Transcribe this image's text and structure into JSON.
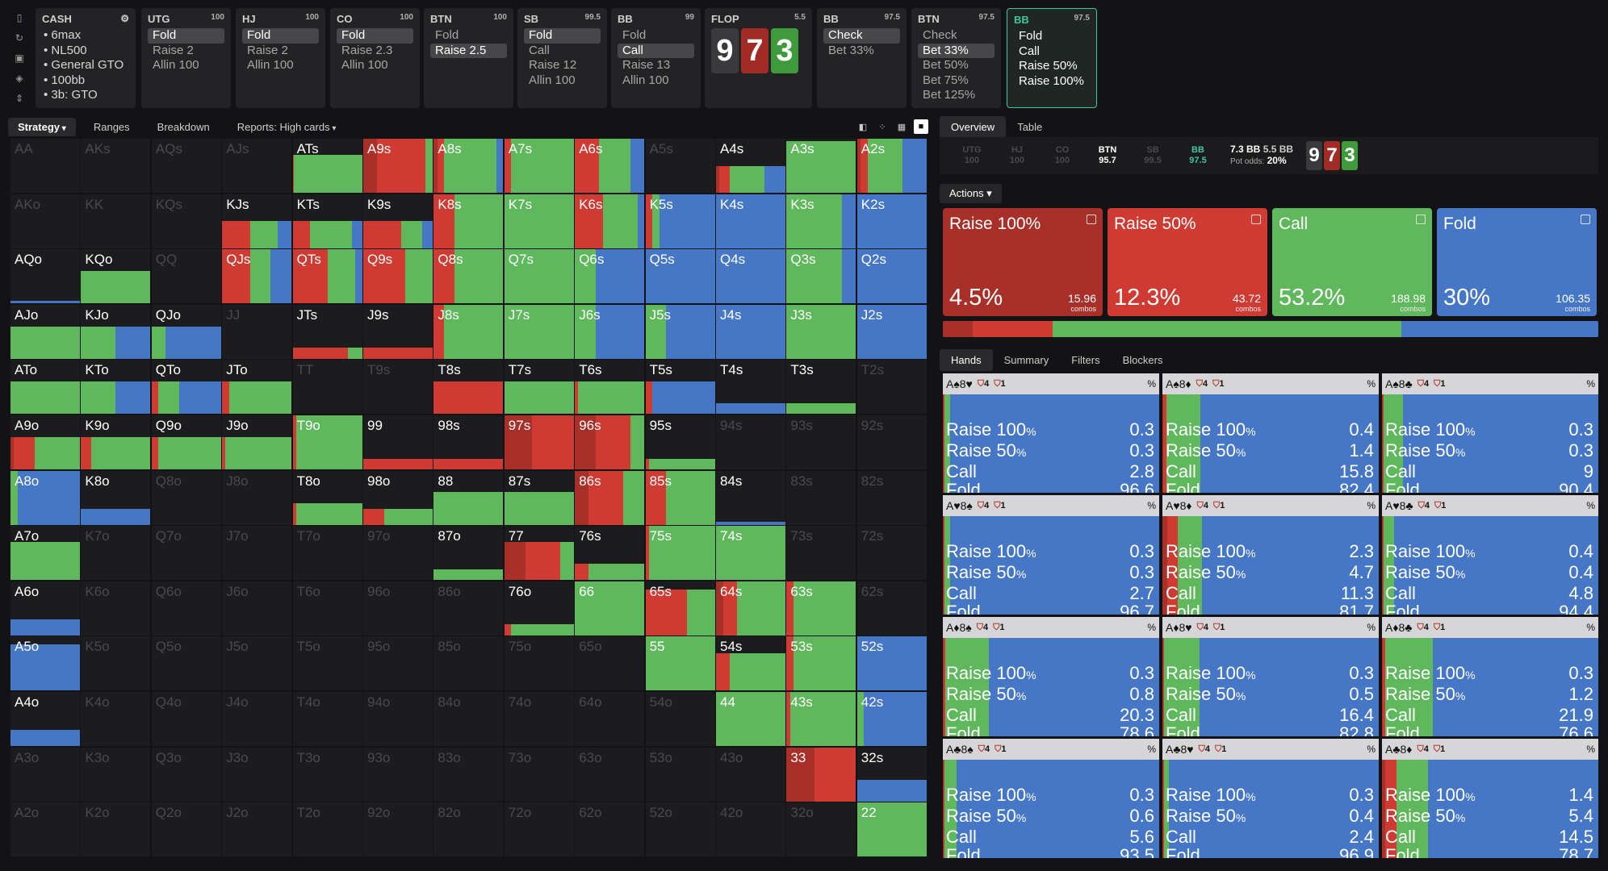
{
  "colors": {
    "raise_big": "#a83029",
    "raise": "#cf3b32",
    "call": "#5fb85c",
    "fold": "#4577c6",
    "check": "#5fb85c",
    "accent": "#3fc59a"
  },
  "sidetools": [
    "bookmark-icon",
    "refresh-icon",
    "save-icon",
    "controller-icon",
    "height-icon"
  ],
  "cash": {
    "title": "CASH",
    "items": [
      "6max",
      "NL500",
      "General GTO",
      "100bb",
      "3b: GTO"
    ]
  },
  "action_boxes": [
    {
      "pos": "UTG",
      "stack": "100",
      "options": [
        "Fold",
        "Raise 2",
        "Allin 100"
      ],
      "selected": 0
    },
    {
      "pos": "HJ",
      "stack": "100",
      "options": [
        "Fold",
        "Raise 2",
        "Allin 100"
      ],
      "selected": 0
    },
    {
      "pos": "CO",
      "stack": "100",
      "options": [
        "Fold",
        "Raise 2.3",
        "Allin 100"
      ],
      "selected": 0
    },
    {
      "pos": "BTN",
      "stack": "100",
      "options": [
        "Fold",
        "Raise 2.5"
      ],
      "selected": 1
    },
    {
      "pos": "SB",
      "stack": "99.5",
      "options": [
        "Fold",
        "Call",
        "Raise 12",
        "Allin 100"
      ],
      "selected": 0
    },
    {
      "pos": "BB",
      "stack": "99",
      "options": [
        "Fold",
        "Call",
        "Raise 13",
        "Allin 100"
      ],
      "selected": 1
    },
    {
      "pos": "BB",
      "stack": "97.5",
      "options": [
        "Check",
        "Bet 33%"
      ],
      "selected": 0
    },
    {
      "pos": "BTN",
      "stack": "97.5",
      "options": [
        "Check",
        "Bet 33%",
        "Bet 50%",
        "Bet 75%",
        "Bet 125%"
      ],
      "selected": 1
    },
    {
      "pos": "BB",
      "stack": "97.5",
      "options": [
        "Fold",
        "Call",
        "Raise 50%",
        "Raise 100%"
      ],
      "selected": -1,
      "active": true
    }
  ],
  "flop": {
    "title": "FLOP",
    "pot": "5.5",
    "cards": [
      {
        "rank": "9",
        "color": "#3a3a3c"
      },
      {
        "rank": "7",
        "color": "#a32b26"
      },
      {
        "rank": "3",
        "color": "#3f9a3c"
      }
    ]
  },
  "left_tabs": [
    "Strategy",
    "Ranges",
    "Breakdown",
    "Reports: High cards"
  ],
  "view_icons": [
    "compare-icon",
    "grid-small-icon",
    "grid-medium-icon",
    "grid-large-icon"
  ],
  "grid_labels": [
    [
      "AA",
      "AKs",
      "AQs",
      "AJs",
      "ATs",
      "A9s",
      "A8s",
      "A7s",
      "A6s",
      "A5s",
      "A4s",
      "A3s",
      "A2s"
    ],
    [
      "AKo",
      "KK",
      "KQs",
      "KJs",
      "KTs",
      "K9s",
      "K8s",
      "K7s",
      "K6s",
      "K5s",
      "K4s",
      "K3s",
      "K2s"
    ],
    [
      "AQo",
      "KQo",
      "QQ",
      "QJs",
      "QTs",
      "Q9s",
      "Q8s",
      "Q7s",
      "Q6s",
      "Q5s",
      "Q4s",
      "Q3s",
      "Q2s"
    ],
    [
      "AJo",
      "KJo",
      "QJo",
      "JJ",
      "JTs",
      "J9s",
      "J8s",
      "J7s",
      "J6s",
      "J5s",
      "J4s",
      "J3s",
      "J2s"
    ],
    [
      "ATo",
      "KTo",
      "QTo",
      "JTo",
      "TT",
      "T9s",
      "T8s",
      "T7s",
      "T6s",
      "T5s",
      "T4s",
      "T3s",
      "T2s"
    ],
    [
      "A9o",
      "K9o",
      "Q9o",
      "J9o",
      "T9o",
      "99",
      "98s",
      "97s",
      "96s",
      "95s",
      "94s",
      "93s",
      "92s"
    ],
    [
      "A8o",
      "K8o",
      "Q8o",
      "J8o",
      "T8o",
      "98o",
      "88",
      "87s",
      "86s",
      "85s",
      "84s",
      "83s",
      "82s"
    ],
    [
      "A7o",
      "K7o",
      "Q7o",
      "J7o",
      "T7o",
      "97o",
      "87o",
      "77",
      "76s",
      "75s",
      "74s",
      "73s",
      "72s"
    ],
    [
      "A6o",
      "K6o",
      "Q6o",
      "J6o",
      "T6o",
      "96o",
      "86o",
      "76o",
      "66",
      "65s",
      "64s",
      "63s",
      "62s"
    ],
    [
      "A5o",
      "K5o",
      "Q5o",
      "J5o",
      "T5o",
      "95o",
      "85o",
      "75o",
      "65o",
      "55",
      "54s",
      "53s",
      "52s"
    ],
    [
      "A4o",
      "K4o",
      "Q4o",
      "J4o",
      "T4o",
      "94o",
      "84o",
      "74o",
      "64o",
      "54o",
      "44",
      "43s",
      "42s"
    ],
    [
      "A3o",
      "K3o",
      "Q3o",
      "J3o",
      "T3o",
      "93o",
      "83o",
      "73o",
      "63o",
      "53o",
      "43o",
      "33",
      "32s"
    ],
    [
      "A2o",
      "K2o",
      "Q2o",
      "J2o",
      "T2o",
      "92o",
      "82o",
      "72o",
      "62o",
      "52o",
      "42o",
      "32o",
      "22"
    ]
  ],
  "grid_strategy": {
    "AA": null,
    "AKs": null,
    "AQs": null,
    "AJs": null,
    "ATs": [
      0.7,
      0,
      0.02,
      0.98,
      0
    ],
    "A9s": [
      1,
      0.2,
      0.7,
      0.1,
      0
    ],
    "A8s": [
      1,
      0.05,
      0.1,
      0.75,
      0.1
    ],
    "A7s": [
      1,
      0,
      0.1,
      0.9,
      0
    ],
    "A6s": [
      1,
      0,
      0.35,
      0.45,
      0.2
    ],
    "A5s": null,
    "A4s": [
      0.5,
      0.05,
      0.15,
      0.5,
      0.3
    ],
    "A3s": [
      0.95,
      0,
      0,
      1,
      0
    ],
    "A2s": [
      1,
      0.05,
      0.1,
      0.5,
      0.35
    ],
    "AKo": null,
    "KK": null,
    "KQs": null,
    "KJs": [
      0.5,
      0,
      0.4,
      0.4,
      0.2
    ],
    "KTs": [
      0.5,
      0,
      0.25,
      0.6,
      0.15
    ],
    "K9s": [
      0.5,
      0,
      0.55,
      0.3,
      0.15
    ],
    "K8s": [
      1,
      0,
      0.3,
      0.7,
      0
    ],
    "K7s": [
      1,
      0,
      0,
      1,
      0
    ],
    "K6s": [
      1,
      0,
      0.4,
      0.5,
      0.1
    ],
    "K5s": [
      1,
      0,
      0.1,
      0.1,
      0.8
    ],
    "K4s": [
      1,
      0,
      0,
      0,
      1
    ],
    "K3s": [
      1,
      0,
      0,
      0.8,
      0.2
    ],
    "K2s": [
      1,
      0,
      0,
      0,
      1
    ],
    "AQo": [
      0.05,
      0,
      0,
      0,
      1
    ],
    "KQo": [
      0.6,
      0,
      0,
      1,
      0
    ],
    "QQ": null,
    "QJs": [
      1,
      0,
      0.4,
      0.3,
      0.3
    ],
    "QTs": [
      1,
      0,
      0.5,
      0.4,
      0.1
    ],
    "Q9s": [
      1,
      0,
      0.6,
      0.4,
      0
    ],
    "Q8s": [
      1,
      0,
      0.3,
      0.7,
      0
    ],
    "Q7s": [
      1,
      0,
      0,
      1,
      0
    ],
    "Q6s": [
      1,
      0,
      0,
      0.3,
      0.7
    ],
    "Q5s": [
      1,
      0,
      0,
      0,
      1
    ],
    "Q4s": [
      1,
      0,
      0,
      0,
      1
    ],
    "Q3s": [
      1,
      0,
      0,
      0.8,
      0.2
    ],
    "Q2s": [
      1,
      0,
      0,
      0,
      1
    ],
    "AJo": [
      0.6,
      0,
      0,
      1,
      0
    ],
    "KJo": [
      0.6,
      0,
      0,
      0.5,
      0.5
    ],
    "QJo": [
      0.6,
      0,
      0,
      0.2,
      0.8
    ],
    "JJ": null,
    "JTs": [
      0.2,
      0,
      0.8,
      0.2,
      0
    ],
    "J9s": [
      0.2,
      0,
      1,
      0,
      0
    ],
    "J8s": [
      1,
      0,
      0.15,
      0.85,
      0
    ],
    "J7s": [
      1,
      0,
      0,
      1,
      0
    ],
    "J6s": [
      1,
      0,
      0,
      0.3,
      0.7
    ],
    "J5s": [
      1,
      0,
      0,
      0.3,
      0.7
    ],
    "J4s": [
      1,
      0,
      0,
      0,
      1
    ],
    "J3s": [
      1,
      0,
      0,
      1,
      0
    ],
    "J2s": [
      1,
      0,
      0,
      0,
      1
    ],
    "ATo": [
      0.6,
      0,
      0,
      1,
      0
    ],
    "KTo": [
      0.6,
      0,
      0,
      0.5,
      0.5
    ],
    "QTo": [
      0.6,
      0,
      0.1,
      0.3,
      0.6
    ],
    "JTo": [
      0.6,
      0,
      0.1,
      0.9,
      0
    ],
    "TT": null,
    "T9s": null,
    "T8s": [
      0.6,
      0,
      1,
      0,
      0
    ],
    "T7s": [
      0.6,
      0,
      0,
      1,
      0
    ],
    "T6s": [
      0.6,
      0,
      0.05,
      0.95,
      0
    ],
    "T5s": [
      0.6,
      0,
      0.1,
      0,
      0.9
    ],
    "T4s": [
      0.2,
      0,
      0,
      0,
      1
    ],
    "T3s": [
      0.2,
      0,
      0,
      1,
      0
    ],
    "T2s": null,
    "A9o": [
      0.6,
      0.05,
      0.3,
      0.65,
      0
    ],
    "K9o": [
      0.6,
      0,
      0.15,
      0.85,
      0
    ],
    "Q9o": [
      0.6,
      0,
      0.1,
      0.9,
      0
    ],
    "J9o": [
      0.6,
      0,
      0.05,
      0.95,
      0
    ],
    "T9o": [
      1,
      0,
      0.05,
      0.95,
      0
    ],
    "99": [
      0.2,
      0,
      1,
      0,
      0
    ],
    "98s": [
      0.2,
      0,
      1,
      0,
      0
    ],
    "97s": [
      1,
      0.4,
      0.6,
      0,
      0
    ],
    "96s": [
      1,
      0.3,
      0.5,
      0.2,
      0
    ],
    "95s": [
      0.2,
      0,
      0.05,
      0.95,
      0
    ],
    "94s": null,
    "93s": null,
    "92s": null,
    "A8o": [
      1,
      0,
      0,
      0.1,
      0.9
    ],
    "K8o": [
      0.3,
      0,
      0,
      0,
      1
    ],
    "Q8o": null,
    "J8o": null,
    "T8o": [
      0.4,
      0,
      0.05,
      0.95,
      0
    ],
    "98o": [
      0.3,
      0,
      0.3,
      0.7,
      0
    ],
    "88": [
      0.6,
      0,
      0,
      1,
      0
    ],
    "87s": [
      0.6,
      0,
      0,
      1,
      0
    ],
    "86s": [
      1,
      0.2,
      0.5,
      0.3,
      0
    ],
    "85s": [
      1,
      0,
      0.3,
      0.7,
      0
    ],
    "84s": [
      0.05,
      0,
      0,
      0,
      1
    ],
    "83s": null,
    "82s": null,
    "A7o": [
      0.7,
      0,
      0,
      1,
      0
    ],
    "K7o": null,
    "Q7o": null,
    "J7o": null,
    "T7o": null,
    "97o": null,
    "87o": [
      0.2,
      0,
      0,
      1,
      0
    ],
    "77": [
      0.7,
      0.3,
      0.5,
      0.2,
      0
    ],
    "76s": [
      0.3,
      0,
      0.2,
      0.8,
      0
    ],
    "75s": [
      1,
      0,
      0.05,
      0.95,
      0
    ],
    "74s": [
      1,
      0,
      0,
      1,
      0
    ],
    "73s": null,
    "72s": null,
    "A6o": [
      0.3,
      0,
      0,
      0,
      1
    ],
    "K6o": null,
    "Q6o": null,
    "J6o": null,
    "T6o": null,
    "96o": null,
    "86o": null,
    "76o": [
      0.2,
      0,
      0.1,
      0.9,
      0
    ],
    "66": [
      1,
      0,
      0,
      1,
      0
    ],
    "65s": [
      0.85,
      0,
      0.6,
      0.4,
      0
    ],
    "64s": [
      1,
      0.1,
      0.2,
      0.7,
      0
    ],
    "63s": [
      1,
      0,
      0.1,
      0.9,
      0
    ],
    "62s": null,
    "A5o": [
      0.85,
      0,
      0,
      0,
      1
    ],
    "K5o": null,
    "Q5o": null,
    "J5o": null,
    "T5o": null,
    "95o": null,
    "85o": null,
    "75o": null,
    "65o": null,
    "55": [
      1,
      0,
      0,
      1,
      0
    ],
    "54s": [
      0.7,
      0,
      0.2,
      0.8,
      0
    ],
    "53s": [
      1,
      0,
      0.1,
      0.9,
      0
    ],
    "52s": [
      1,
      0,
      0,
      0,
      1
    ],
    "A4o": [
      0.3,
      0,
      0,
      0,
      1
    ],
    "K4o": null,
    "Q4o": null,
    "J4o": null,
    "T4o": null,
    "94o": null,
    "84o": null,
    "74o": null,
    "64o": null,
    "54o": null,
    "44": [
      1,
      0,
      0,
      1,
      0
    ],
    "43s": [
      1,
      0,
      0.05,
      0.95,
      0
    ],
    "42s": [
      1,
      0,
      0,
      0.1,
      0.9
    ],
    "A3o": null,
    "K3o": null,
    "Q3o": null,
    "J3o": null,
    "T3o": null,
    "93o": null,
    "83o": null,
    "73o": null,
    "63o": null,
    "53o": null,
    "43o": null,
    "33": [
      1,
      0.4,
      0.6,
      0,
      0
    ],
    "32s": [
      0.4,
      0,
      0,
      0,
      1
    ],
    "A2o": null,
    "K2o": null,
    "Q2o": null,
    "J2o": null,
    "T2o": null,
    "92o": null,
    "82o": null,
    "72o": null,
    "62o": null,
    "52o": null,
    "42o": null,
    "32o": null,
    "22": [
      1,
      0,
      0,
      1,
      0
    ]
  },
  "right_tabs": [
    "Overview",
    "Table"
  ],
  "strip": {
    "positions": [
      {
        "p": "UTG",
        "s": "100"
      },
      {
        "p": "HJ",
        "s": "100"
      },
      {
        "p": "CO",
        "s": "100"
      },
      {
        "p": "BTN",
        "s": "95.7",
        "on": true
      },
      {
        "p": "SB",
        "s": "99.5"
      },
      {
        "p": "BB",
        "s": "97.5",
        "bb": true
      }
    ],
    "pot_bb": "7.3 BB",
    "bet_bb": "5.5 BB",
    "pot_odds_label": "Pot odds:",
    "pot_odds": "20%"
  },
  "actions_dropdown": "Actions",
  "action_cards": [
    {
      "name": "Raise 100%",
      "pct": "4.5%",
      "combos": "15.96",
      "combos_label": "combos",
      "color": "#a83029",
      "freq": 4.5
    },
    {
      "name": "Raise 50%",
      "pct": "12.3%",
      "combos": "43.72",
      "combos_label": "combos",
      "color": "#cf3b32",
      "freq": 12.3
    },
    {
      "name": "Call",
      "pct": "53.2%",
      "combos": "188.98",
      "combos_label": "combos",
      "color": "#5fb85c",
      "freq": 53.2
    },
    {
      "name": "Fold",
      "pct": "30%",
      "combos": "106.35",
      "combos_label": "combos",
      "color": "#4577c6",
      "freq": 30
    }
  ],
  "hand_tabs": [
    "Hands",
    "Summary",
    "Filters",
    "Blockers"
  ],
  "hands": [
    {
      "cards": "A♠8♥",
      "b1": "4",
      "b2": "1",
      "vals": [
        "0.3",
        "0.3",
        "2.8",
        "96.6"
      ]
    },
    {
      "cards": "A♠8♦",
      "b1": "4",
      "b2": "1",
      "vals": [
        "0.4",
        "1.4",
        "15.8",
        "82.4"
      ]
    },
    {
      "cards": "A♠8♣",
      "b1": "4",
      "b2": "1",
      "vals": [
        "0.3",
        "0.3",
        "9",
        "90.4"
      ]
    },
    {
      "cards": "A♥8♠",
      "b1": "4",
      "b2": "1",
      "vals": [
        "0.3",
        "0.3",
        "2.7",
        "96.7"
      ]
    },
    {
      "cards": "A♥8♦",
      "b1": "4",
      "b2": "1",
      "vals": [
        "2.3",
        "4.7",
        "11.3",
        "81.7"
      ]
    },
    {
      "cards": "A♥8♣",
      "b1": "4",
      "b2": "1",
      "vals": [
        "0.4",
        "0.4",
        "4.8",
        "94.4"
      ]
    },
    {
      "cards": "A♦8♠",
      "b1": "4",
      "b2": "1",
      "vals": [
        "0.3",
        "0.8",
        "20.3",
        "78.6"
      ]
    },
    {
      "cards": "A♦8♥",
      "b1": "4",
      "b2": "1",
      "vals": [
        "0.3",
        "0.5",
        "16.4",
        "82.8"
      ]
    },
    {
      "cards": "A♦8♣",
      "b1": "4",
      "b2": "1",
      "vals": [
        "0.3",
        "1.2",
        "21.9",
        "76.6"
      ]
    },
    {
      "cards": "A♣8♠",
      "b1": "4",
      "b2": "1",
      "vals": [
        "0.3",
        "0.6",
        "5.6",
        "93.5"
      ]
    },
    {
      "cards": "A♣8♥",
      "b1": "4",
      "b2": "1",
      "vals": [
        "0.3",
        "0.4",
        "2.4",
        "96.9"
      ]
    },
    {
      "cards": "A♣8♦",
      "b1": "4",
      "b2": "1",
      "vals": [
        "1.4",
        "5.4",
        "14.5",
        "78.7"
      ]
    }
  ],
  "hand_row_labels": [
    "Raise 100",
    "Raise 50",
    "Call",
    "Fold"
  ],
  "pct_symbol": "%"
}
